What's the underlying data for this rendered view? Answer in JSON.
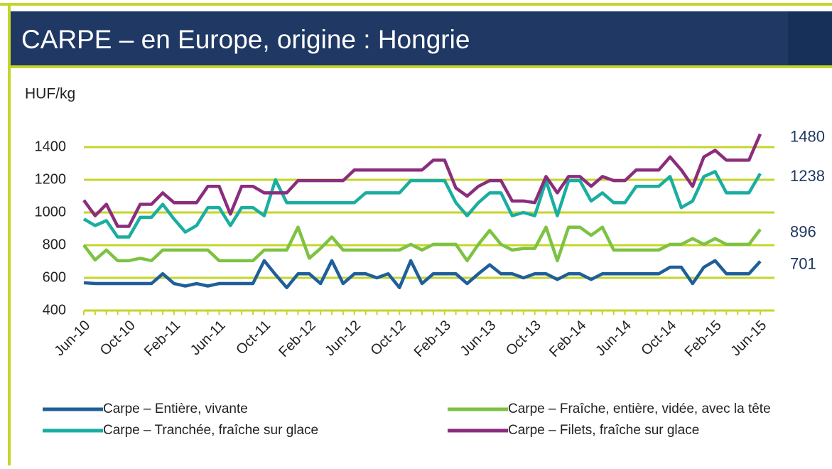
{
  "header": {
    "title": "CARPE – en Europe, origine : Hongrie"
  },
  "chart_data": {
    "type": "line",
    "y_label": "HUF/kg",
    "categories": [
      "Jun-10",
      null,
      null,
      null,
      "Oct-10",
      null,
      null,
      null,
      "Feb-11",
      null,
      null,
      null,
      "Jun-11",
      null,
      null,
      null,
      "Oct-11",
      null,
      null,
      null,
      "Feb-12",
      null,
      null,
      null,
      "Jun-12",
      null,
      null,
      null,
      "Oct-12",
      null,
      null,
      null,
      "Feb-13",
      null,
      null,
      null,
      "Jun-13",
      null,
      null,
      null,
      "Oct-13",
      null,
      null,
      null,
      "Feb-14",
      null,
      null,
      null,
      "Jun-14",
      null,
      null,
      null,
      "Oct-14",
      null,
      null,
      null,
      "Feb-15",
      null,
      null,
      null,
      "Jun-15"
    ],
    "series": [
      {
        "name": "Carpe – Entière, vivante",
        "color": "#1f5f99",
        "values": [
          570,
          565,
          565,
          565,
          565,
          565,
          565,
          625,
          565,
          550,
          565,
          550,
          565,
          565,
          565,
          565,
          705,
          620,
          540,
          625,
          625,
          565,
          705,
          565,
          625,
          625,
          600,
          625,
          540,
          705,
          565,
          625,
          625,
          625,
          565,
          625,
          680,
          625,
          625,
          600,
          625,
          625,
          590,
          625,
          625,
          590,
          625,
          625,
          625,
          625,
          625,
          625,
          665,
          665,
          565,
          665,
          705,
          625,
          625,
          625,
          701
        ]
      },
      {
        "name": "Carpe – Tranchée, fraîche sur glace",
        "color": "#1aaea0",
        "values": [
          960,
          920,
          950,
          850,
          850,
          970,
          970,
          1050,
          960,
          880,
          920,
          1030,
          1030,
          920,
          1030,
          1030,
          980,
          1200,
          1060,
          1060,
          1060,
          1060,
          1060,
          1060,
          1060,
          1120,
          1120,
          1120,
          1120,
          1195,
          1195,
          1195,
          1195,
          1060,
          980,
          1060,
          1120,
          1120,
          980,
          1000,
          980,
          1195,
          980,
          1195,
          1195,
          1070,
          1120,
          1060,
          1060,
          1160,
          1160,
          1160,
          1220,
          1030,
          1070,
          1220,
          1250,
          1120,
          1120,
          1120,
          1238
        ]
      },
      {
        "name": "Carpe – Fraîche, entière, vidée, avec la tête",
        "color": "#7dc242",
        "values": [
          800,
          710,
          770,
          705,
          705,
          720,
          705,
          770,
          770,
          770,
          770,
          770,
          705,
          705,
          705,
          705,
          770,
          770,
          770,
          910,
          720,
          780,
          850,
          770,
          770,
          770,
          770,
          770,
          770,
          805,
          770,
          805,
          805,
          805,
          705,
          805,
          890,
          805,
          770,
          780,
          780,
          910,
          705,
          910,
          910,
          860,
          910,
          770,
          770,
          770,
          770,
          770,
          805,
          805,
          840,
          805,
          840,
          805,
          805,
          805,
          896
        ]
      },
      {
        "name": "Carpe – Filets, fraîche sur glace",
        "color": "#8b2d7d",
        "values": [
          1075,
          980,
          1050,
          915,
          915,
          1050,
          1050,
          1120,
          1060,
          1060,
          1060,
          1160,
          1160,
          990,
          1160,
          1160,
          1120,
          1120,
          1120,
          1195,
          1195,
          1195,
          1195,
          1195,
          1260,
          1260,
          1260,
          1260,
          1260,
          1260,
          1260,
          1320,
          1320,
          1150,
          1100,
          1160,
          1195,
          1195,
          1070,
          1070,
          1060,
          1220,
          1120,
          1220,
          1220,
          1160,
          1220,
          1195,
          1195,
          1260,
          1260,
          1260,
          1340,
          1260,
          1160,
          1340,
          1380,
          1320,
          1320,
          1320,
          1480
        ]
      }
    ],
    "ylim": [
      400,
      1500
    ],
    "yticks": [
      400,
      600,
      800,
      1000,
      1200,
      1400
    ],
    "grid": true,
    "grid_color": "#c5d52a"
  }
}
